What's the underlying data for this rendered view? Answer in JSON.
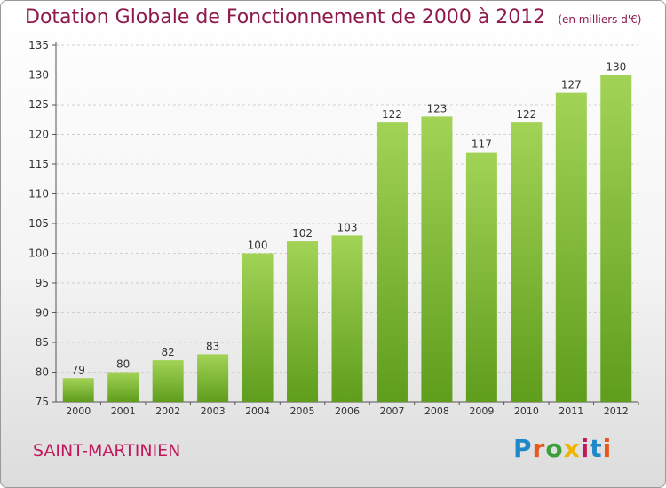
{
  "chart_data": {
    "type": "bar",
    "title": "Dotation Globale de Fonctionnement de 2000 à 2012",
    "subtitle": "(en milliers d'€)",
    "categories": [
      "2000",
      "2001",
      "2002",
      "2003",
      "2004",
      "2005",
      "2006",
      "2007",
      "2008",
      "2009",
      "2010",
      "2011",
      "2012"
    ],
    "values": [
      79,
      80,
      82,
      83,
      100,
      102,
      103,
      122,
      123,
      117,
      122,
      127,
      130
    ],
    "ylim": [
      75,
      135
    ],
    "yticks": [
      75,
      80,
      85,
      90,
      95,
      100,
      105,
      110,
      115,
      120,
      125,
      130,
      135
    ],
    "grid": true,
    "bar_color": "#7ab530",
    "bar_color_light": "#9ccf4e"
  },
  "footer": {
    "commune": "SAINT-MARTINIEN",
    "logo_text": "Proxiti",
    "logo_colors": [
      "#1e88c9",
      "#e8581b",
      "#3aa03a",
      "#f0b400",
      "#c2185b",
      "#1e88c9",
      "#e8581b"
    ]
  }
}
